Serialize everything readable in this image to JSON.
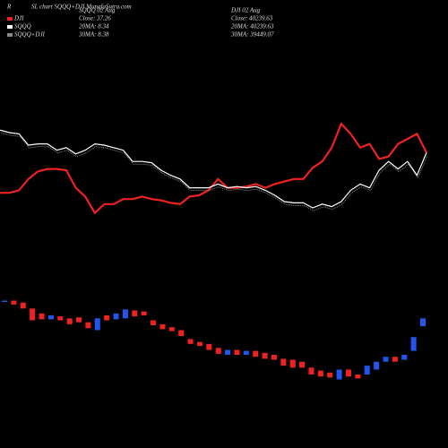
{
  "chart_data": [
    {
      "type": "line",
      "corner": "R",
      "title": "SL chart SQQQ+DJI MunafaSutra.com",
      "annotations": [
        [
          "SQQQ 02 Aug",
          "Close: 37.26",
          "20MA: 8.34",
          "30MA: 8.38"
        ],
        [
          "DJI 02 Aug",
          "Close: 40239.63",
          "20MA: 40239.63",
          "30MA: 39449.07"
        ]
      ],
      "legend_labels": [
        "SQQQ+DJI"
      ],
      "ylim": [
        0,
        100
      ],
      "series": [
        {
          "name": "DJI",
          "color": "#ee2222",
          "values": [
            32,
            32,
            34,
            43,
            49,
            51,
            51,
            50,
            36,
            29,
            16,
            23,
            23,
            27,
            27,
            29,
            27,
            26,
            24,
            23,
            29,
            30,
            34,
            43,
            36,
            36,
            37,
            39,
            36,
            39,
            41,
            43,
            43,
            52,
            57,
            68,
            87,
            79,
            68,
            71,
            59,
            61,
            71,
            75,
            79,
            64
          ]
        },
        {
          "name": "SQQQ",
          "color": "#ffffff",
          "values": [
            82,
            80,
            79,
            70,
            71,
            71,
            66,
            68,
            63,
            66,
            71,
            70,
            68,
            66,
            57,
            57,
            56,
            50,
            46,
            43,
            36,
            36,
            36,
            39,
            36,
            37,
            36,
            37,
            34,
            30,
            25,
            24,
            24,
            20,
            23,
            21,
            25,
            34,
            39,
            36,
            50,
            57,
            51,
            57,
            46,
            64
          ]
        }
      ]
    },
    {
      "type": "candlestick",
      "ylim": [
        0,
        100
      ],
      "up_color": "#2255ee",
      "down_color": "#ee2222",
      "open": [
        94,
        95,
        93,
        87,
        82,
        76,
        79,
        77,
        78,
        73,
        65,
        80,
        76,
        77,
        85,
        84,
        75,
        71,
        68,
        65,
        56,
        53,
        51,
        47,
        40,
        45,
        40,
        44,
        42,
        40,
        36,
        35,
        33,
        27,
        24,
        22,
        15,
        25,
        20,
        20,
        25,
        33,
        38,
        35,
        44,
        69
      ],
      "close": [
        95,
        91,
        87,
        75,
        76,
        80,
        75,
        71,
        73,
        67,
        77,
        75,
        82,
        86,
        79,
        80,
        70,
        66,
        64,
        59,
        51,
        49,
        45,
        41,
        45,
        40,
        44,
        38,
        36,
        35,
        29,
        27,
        27,
        20,
        18,
        17,
        25,
        18,
        16,
        29,
        33,
        38,
        33,
        40,
        58,
        77
      ]
    }
  ]
}
